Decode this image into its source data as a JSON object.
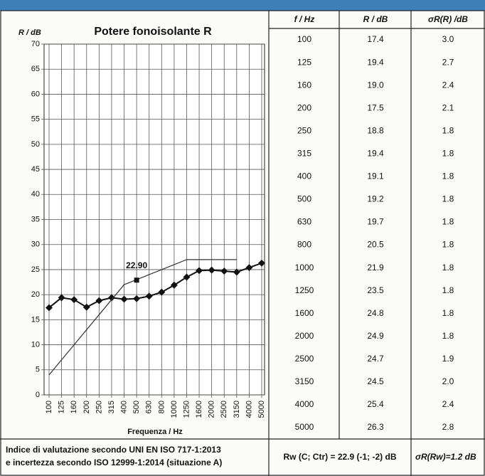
{
  "chart_data": {
    "type": "line",
    "title": "Potere fonoisolante R",
    "ylabel": "R / dB",
    "xlabel": "Frequenza / Hz",
    "categories": [
      "100",
      "125",
      "160",
      "200",
      "250",
      "315",
      "400",
      "500",
      "630",
      "800",
      "1000",
      "1250",
      "1600",
      "2000",
      "2500",
      "3150",
      "4000",
      "5000"
    ],
    "series": [
      {
        "color": "#111111",
        "values": [
          17.4,
          19.4,
          19.0,
          17.5,
          18.8,
          19.4,
          19.1,
          19.2,
          19.7,
          20.5,
          21.9,
          23.5,
          24.8,
          24.9,
          24.7,
          24.5,
          25.4,
          26.3
        ]
      },
      {
        "color": "#333333",
        "values": [
          4,
          7,
          10,
          13,
          16,
          19,
          22,
          23,
          24,
          25,
          26,
          27,
          27,
          27,
          27,
          27,
          null,
          null
        ]
      }
    ],
    "annotation": {
      "category": "500",
      "value": 22.9,
      "label": "22.90"
    },
    "ylim": [
      0,
      70
    ],
    "yticks": [
      0,
      5,
      10,
      15,
      20,
      25,
      30,
      35,
      40,
      45,
      50,
      55,
      60,
      65,
      70
    ],
    "grid": true
  },
  "table": {
    "header": [
      "f / Hz",
      "R / dB",
      "σR(R) /dB"
    ],
    "rows": [
      [
        "100",
        "17.4",
        "3.0"
      ],
      [
        "125",
        "19.4",
        "2.7"
      ],
      [
        "160",
        "19.0",
        "2.4"
      ],
      [
        "200",
        "17.5",
        "2.1"
      ],
      [
        "250",
        "18.8",
        "1.8"
      ],
      [
        "315",
        "19.4",
        "1.8"
      ],
      [
        "400",
        "19.1",
        "1.8"
      ],
      [
        "500",
        "19.2",
        "1.8"
      ],
      [
        "630",
        "19.7",
        "1.8"
      ],
      [
        "800",
        "20.5",
        "1.8"
      ],
      [
        "1000",
        "21.9",
        "1.8"
      ],
      [
        "1250",
        "23.5",
        "1.8"
      ],
      [
        "1600",
        "24.8",
        "1.8"
      ],
      [
        "2000",
        "24.9",
        "1.8"
      ],
      [
        "2500",
        "24.7",
        "1.9"
      ],
      [
        "3150",
        "24.5",
        "2.0"
      ],
      [
        "4000",
        "25.4",
        "2.4"
      ],
      [
        "5000",
        "26.3",
        "2.8"
      ]
    ]
  },
  "footer": {
    "lines": [
      "Indice di valutazione secondo UNI EN ISO 717-1:2013",
      "e incertezza secondo ISO 12999-1:2014 (situazione A)"
    ],
    "rating": "Rw (C; Ctr) = 22.9 (-1; -2) dB",
    "uncertainty": "σR(Rw)=1.2 dB"
  }
}
